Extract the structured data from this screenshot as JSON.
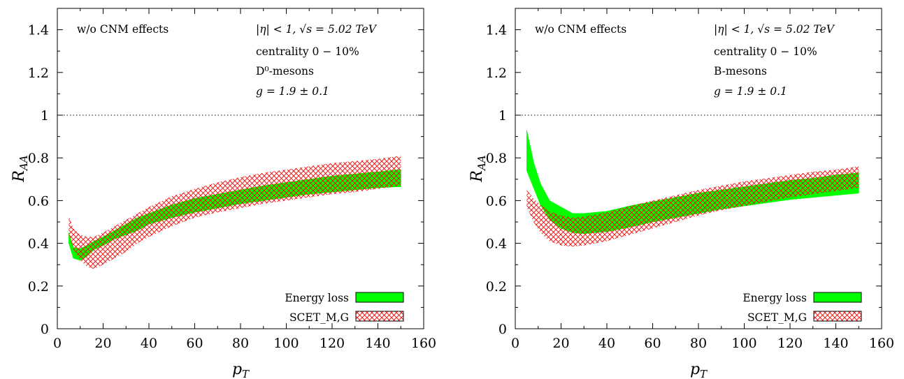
{
  "chart_data": [
    {
      "type": "area",
      "panel": "left",
      "xlabel": "p_T",
      "ylabel": "R_AA",
      "xlim": [
        0,
        160
      ],
      "ylim": [
        0,
        1.5
      ],
      "x_ticks": [
        "0",
        "20",
        "40",
        "60",
        "80",
        "100",
        "120",
        "140",
        "160"
      ],
      "y_ticks": [
        "0",
        "0.2",
        "0.4",
        "0.6",
        "0.8",
        "1",
        "1.2",
        "1.4"
      ],
      "reference_line": 1,
      "annotations": {
        "left": "w/o CNM effects",
        "line1": "|η| < 1, √s = 5.02 TeV",
        "line2": "centrality 0 − 10%",
        "line3": "D⁰-mesons",
        "line4": "g = 1.9 ± 0.1"
      },
      "legend_position": "bottom-right",
      "series": [
        {
          "name": "Energy loss",
          "color": "#00ff00",
          "x": [
            5,
            7,
            10,
            13,
            16,
            20,
            25,
            30,
            35,
            40,
            50,
            60,
            70,
            80,
            90,
            100,
            110,
            120,
            130,
            140,
            150
          ],
          "lower": [
            0.4,
            0.33,
            0.32,
            0.34,
            0.37,
            0.39,
            0.42,
            0.44,
            0.46,
            0.49,
            0.52,
            0.545,
            0.565,
            0.585,
            0.6,
            0.615,
            0.63,
            0.64,
            0.65,
            0.66,
            0.665
          ],
          "upper": [
            0.45,
            0.38,
            0.375,
            0.39,
            0.41,
            0.43,
            0.46,
            0.49,
            0.52,
            0.54,
            0.58,
            0.61,
            0.63,
            0.65,
            0.67,
            0.685,
            0.7,
            0.715,
            0.725,
            0.735,
            0.745
          ]
        },
        {
          "name": "SCET_M,G",
          "color": "#ff0000",
          "x": [
            5,
            7,
            10,
            13,
            16,
            20,
            25,
            30,
            35,
            40,
            50,
            60,
            70,
            80,
            90,
            100,
            110,
            120,
            130,
            140,
            150
          ],
          "lower": [
            0.44,
            0.37,
            0.32,
            0.29,
            0.28,
            0.3,
            0.33,
            0.36,
            0.4,
            0.43,
            0.48,
            0.52,
            0.545,
            0.565,
            0.585,
            0.6,
            0.615,
            0.63,
            0.64,
            0.655,
            0.67
          ],
          "upper": [
            0.53,
            0.47,
            0.44,
            0.43,
            0.43,
            0.45,
            0.48,
            0.51,
            0.54,
            0.57,
            0.62,
            0.655,
            0.685,
            0.71,
            0.73,
            0.745,
            0.76,
            0.775,
            0.785,
            0.795,
            0.81
          ]
        }
      ]
    },
    {
      "type": "area",
      "panel": "right",
      "xlabel": "p_T",
      "ylabel": "R_AA",
      "xlim": [
        0,
        160
      ],
      "ylim": [
        0,
        1.5
      ],
      "x_ticks": [
        "0",
        "20",
        "40",
        "60",
        "80",
        "100",
        "120",
        "140",
        "160"
      ],
      "y_ticks": [
        "0",
        "0.2",
        "0.4",
        "0.6",
        "0.8",
        "1",
        "1.2",
        "1.4"
      ],
      "reference_line": 1,
      "annotations": {
        "left": "w/o CNM effects",
        "line1": "|η| < 1, √s = 5.02 TeV",
        "line2": "centrality 0 − 10%",
        "line3": "B-mesons",
        "line4": "g = 1.9 ± 0.1"
      },
      "legend_position": "bottom-right",
      "series": [
        {
          "name": "Energy loss",
          "color": "#00ff00",
          "x": [
            5,
            8,
            11,
            15,
            20,
            25,
            30,
            40,
            50,
            60,
            70,
            80,
            90,
            100,
            110,
            120,
            130,
            140,
            150
          ],
          "lower": [
            0.74,
            0.66,
            0.58,
            0.51,
            0.47,
            0.45,
            0.445,
            0.455,
            0.475,
            0.5,
            0.52,
            0.54,
            0.56,
            0.575,
            0.59,
            0.605,
            0.615,
            0.625,
            0.635
          ],
          "upper": [
            0.93,
            0.78,
            0.68,
            0.6,
            0.57,
            0.54,
            0.54,
            0.55,
            0.575,
            0.595,
            0.615,
            0.635,
            0.65,
            0.665,
            0.68,
            0.695,
            0.705,
            0.72,
            0.73
          ]
        },
        {
          "name": "SCET_M,G",
          "color": "#ff0000",
          "x": [
            5,
            8,
            11,
            15,
            20,
            25,
            30,
            40,
            50,
            60,
            70,
            80,
            90,
            100,
            110,
            120,
            130,
            140,
            150
          ],
          "lower": [
            0.57,
            0.5,
            0.45,
            0.41,
            0.39,
            0.385,
            0.39,
            0.41,
            0.44,
            0.47,
            0.5,
            0.53,
            0.555,
            0.575,
            0.595,
            0.615,
            0.63,
            0.645,
            0.66
          ],
          "upper": [
            0.65,
            0.61,
            0.58,
            0.55,
            0.53,
            0.52,
            0.525,
            0.545,
            0.575,
            0.6,
            0.625,
            0.65,
            0.67,
            0.69,
            0.705,
            0.72,
            0.735,
            0.745,
            0.76
          ]
        }
      ]
    }
  ]
}
